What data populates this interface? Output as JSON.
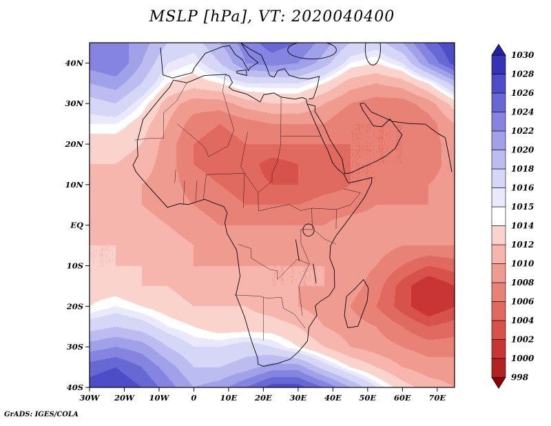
{
  "title": "MSLP [hPa], VT: 2020040400",
  "footer": "GrADS: IGES/COLA",
  "chart_data": {
    "type": "heatmap",
    "title": "MSLP [hPa], VT: 2020040400",
    "variable": "Mean sea level pressure",
    "units": "hPa",
    "lon_range": [
      -30,
      75
    ],
    "lat_range": [
      -40,
      45
    ],
    "grid_on": false,
    "legend_position": "right-colorbar",
    "x_ticks": [
      {
        "label": "30W",
        "lon": -30
      },
      {
        "label": "20W",
        "lon": -20
      },
      {
        "label": "10W",
        "lon": -10
      },
      {
        "label": "0",
        "lon": 0
      },
      {
        "label": "10E",
        "lon": 10
      },
      {
        "label": "20E",
        "lon": 20
      },
      {
        "label": "30E",
        "lon": 30
      },
      {
        "label": "40E",
        "lon": 40
      },
      {
        "label": "50E",
        "lon": 50
      },
      {
        "label": "60E",
        "lon": 60
      },
      {
        "label": "70E",
        "lon": 70
      }
    ],
    "y_ticks": [
      {
        "label": "40N",
        "lat": 40
      },
      {
        "label": "30N",
        "lat": 30
      },
      {
        "label": "20N",
        "lat": 20
      },
      {
        "label": "10N",
        "lat": 10
      },
      {
        "label": "EQ",
        "lat": 0
      },
      {
        "label": "10S",
        "lat": -10
      },
      {
        "label": "20S",
        "lat": -20
      },
      {
        "label": "30S",
        "lat": -30
      },
      {
        "label": "40S",
        "lat": -40
      }
    ],
    "colorbar": {
      "levels": [
        998,
        1000,
        1002,
        1004,
        1006,
        1008,
        1010,
        1012,
        1014,
        1015,
        1016,
        1018,
        1020,
        1022,
        1024,
        1026,
        1028,
        1030
      ],
      "colors": [
        "#8b0000",
        "#b22222",
        "#c93434",
        "#d7524a",
        "#e16a60",
        "#e98276",
        "#f09b90",
        "#f6b6ad",
        "#fad3cc",
        "#ffffff",
        "#e9e9fb",
        "#d6d6f7",
        "#bcbcf1",
        "#a1a1ea",
        "#8585e1",
        "#6868d5",
        "#4d4dc7",
        "#3434b5",
        "#21219c"
      ]
    },
    "grid": {
      "lons": [
        -30,
        -22.5,
        -15,
        -7.5,
        0,
        7.5,
        15,
        22.5,
        30,
        37.5,
        45,
        52.5,
        60,
        67.5,
        75
      ],
      "lats": [
        45,
        40,
        35,
        30,
        25,
        20,
        15,
        10,
        5,
        0,
        -5,
        -10,
        -15,
        -20,
        -25,
        -30,
        -35,
        -40
      ],
      "values": [
        [
          1022,
          1023,
          1021,
          1018,
          1017,
          1020,
          1023,
          1025,
          1024,
          1021,
          1018,
          1017,
          1020,
          1025,
          1028
        ],
        [
          1023,
          1024,
          1020,
          1016,
          1015,
          1018,
          1022,
          1023,
          1022,
          1019,
          1015,
          1014,
          1016,
          1022,
          1027
        ],
        [
          1020,
          1021,
          1018,
          1014,
          1013,
          1014,
          1016,
          1016,
          1016,
          1014,
          1011,
          1010,
          1011,
          1014,
          1019
        ],
        [
          1017,
          1018,
          1015,
          1011,
          1009,
          1009,
          1011,
          1012,
          1012,
          1010,
          1008,
          1007,
          1007,
          1009,
          1013
        ],
        [
          1015,
          1015,
          1013,
          1010,
          1007,
          1006,
          1007,
          1008,
          1008,
          1008,
          1006,
          1006,
          1006,
          1007,
          1010
        ],
        [
          1013,
          1013,
          1012,
          1009,
          1006,
          1005,
          1006,
          1006,
          1006,
          1006,
          1006,
          1006,
          1006,
          1007,
          1009
        ],
        [
          1012,
          1012,
          1011,
          1009,
          1006,
          1005,
          1005,
          1003,
          1004,
          1005,
          1006,
          1006,
          1006,
          1007,
          1009
        ],
        [
          1011,
          1011,
          1010,
          1009,
          1007,
          1006,
          1005,
          1004,
          1004,
          1005,
          1006,
          1006,
          1007,
          1008,
          1009
        ],
        [
          1011,
          1011,
          1010,
          1009,
          1008,
          1007,
          1006,
          1006,
          1006,
          1007,
          1007,
          1008,
          1008,
          1008,
          1009
        ],
        [
          1011,
          1011,
          1011,
          1010,
          1009,
          1008,
          1008,
          1008,
          1008,
          1008,
          1009,
          1009,
          1009,
          1009,
          1009
        ],
        [
          1012,
          1012,
          1011,
          1011,
          1010,
          1009,
          1009,
          1009,
          1009,
          1009,
          1009,
          1009,
          1008,
          1008,
          1008
        ],
        [
          1012,
          1012,
          1012,
          1011,
          1010,
          1010,
          1010,
          1010,
          1010,
          1010,
          1009,
          1008,
          1006,
          1004,
          1005
        ],
        [
          1013,
          1013,
          1012,
          1012,
          1011,
          1011,
          1011,
          1010,
          1010,
          1010,
          1009,
          1007,
          1003,
          1000,
          1002
        ],
        [
          1014,
          1015,
          1014,
          1013,
          1012,
          1012,
          1012,
          1011,
          1010,
          1009,
          1008,
          1006,
          1003,
          1000,
          1002
        ],
        [
          1017,
          1018,
          1017,
          1015,
          1014,
          1013,
          1013,
          1013,
          1012,
          1010,
          1009,
          1008,
          1006,
          1004,
          1005
        ],
        [
          1021,
          1022,
          1021,
          1018,
          1016,
          1016,
          1017,
          1016,
          1014,
          1012,
          1010,
          1009,
          1008,
          1007,
          1007
        ],
        [
          1025,
          1026,
          1024,
          1021,
          1018,
          1018,
          1019,
          1021,
          1021,
          1017,
          1014,
          1012,
          1010,
          1009,
          1009
        ],
        [
          1027,
          1028,
          1026,
          1023,
          1020,
          1021,
          1024,
          1027,
          1027,
          1024,
          1020,
          1016,
          1013,
          1011,
          1010
        ]
      ]
    }
  }
}
